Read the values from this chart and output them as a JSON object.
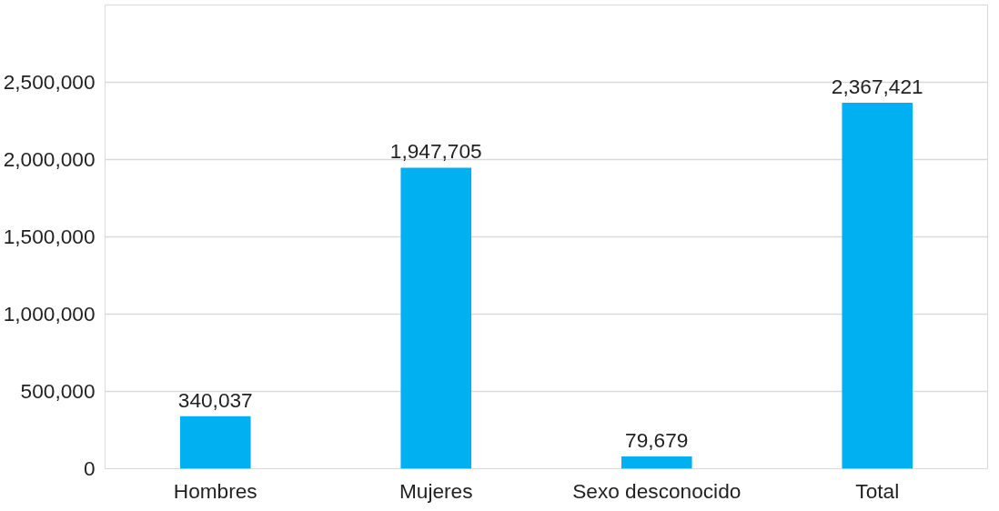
{
  "chart_data": {
    "type": "bar",
    "categories": [
      "Hombres",
      "Mujeres",
      "Sexo desconocido",
      "Total"
    ],
    "values": [
      340037,
      1947705,
      79679,
      2367421
    ],
    "color": "#00b0f0",
    "ylim": [
      0,
      3000000
    ],
    "yticks": [
      {
        "value": 0,
        "label": "0"
      },
      {
        "value": 500000,
        "label": "500,000"
      },
      {
        "value": 1000000,
        "label": "1,000,000"
      },
      {
        "value": 1500000,
        "label": "1,500,000"
      },
      {
        "value": 2000000,
        "label": "2,000,000"
      },
      {
        "value": 2500000,
        "label": "2,500,000"
      }
    ],
    "grid": "y",
    "value_labels": [
      "340,037",
      "1,947,705",
      "79,679",
      "2,367,421"
    ]
  }
}
